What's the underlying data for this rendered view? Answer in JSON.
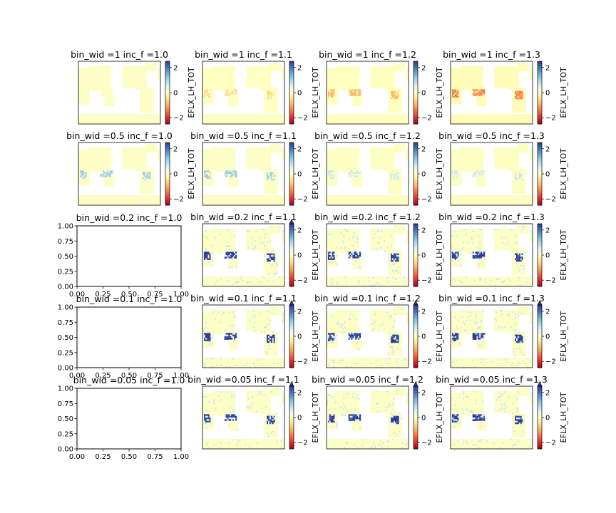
{
  "chart_data": {
    "type": "heatmap",
    "description_rows": "bin_wid values by row, inc_f values by column",
    "colormap": "RdYlBu",
    "colorbar_label": "EFLX_LH_TOT",
    "colorbar_ticks": [
      "2",
      "0",
      "−2"
    ],
    "colorbar_range": [
      -2.5,
      2.5
    ],
    "empty_axis_ticks": [
      "0.00",
      "0.25",
      "0.50",
      "0.75",
      "1.00"
    ],
    "panels": [
      {
        "title": "bin_wid =1 inc_f =1.0",
        "pattern": "neutral",
        "extend": false
      },
      {
        "title": "bin_wid =1 inc_f =1.1",
        "pattern": "neg_weak",
        "extend": false
      },
      {
        "title": "bin_wid =1 inc_f =1.2",
        "pattern": "neg_mid",
        "extend": false
      },
      {
        "title": "bin_wid =1 inc_f =1.3",
        "pattern": "neg_strong",
        "extend": false
      },
      {
        "title": "bin_wid =0.5 inc_f =1.0",
        "pattern": "pos_weak",
        "extend": false
      },
      {
        "title": "bin_wid =0.5 inc_f =1.1",
        "pattern": "pos_weak",
        "extend": false
      },
      {
        "title": "bin_wid =0.5 inc_f =1.2",
        "pattern": "pos_faint",
        "extend": false
      },
      {
        "title": "bin_wid =0.5 inc_f =1.3",
        "pattern": "pos_faint",
        "extend": false
      },
      {
        "title": "bin_wid =0.2 inc_f =1.0",
        "pattern": "empty",
        "extend": false
      },
      {
        "title": "bin_wid =0.2 inc_f =1.1",
        "pattern": "pos_strong",
        "extend": true
      },
      {
        "title": "bin_wid =0.2 inc_f =1.2",
        "pattern": "pos_strong",
        "extend": false
      },
      {
        "title": "bin_wid =0.2 inc_f =1.3",
        "pattern": "pos_strong",
        "extend": false
      },
      {
        "title": "bin_wid =0.1 inc_f =1.0",
        "pattern": "empty",
        "extend": false
      },
      {
        "title": "bin_wid =0.1 inc_f =1.1",
        "pattern": "pos_strong",
        "extend": true
      },
      {
        "title": "bin_wid =0.1 inc_f =1.2",
        "pattern": "pos_strong",
        "extend": true
      },
      {
        "title": "bin_wid =0.1 inc_f =1.3",
        "pattern": "pos_strong",
        "extend": true
      },
      {
        "title": "bin_wid =0.05 inc_f =1.0",
        "pattern": "empty",
        "extend": false
      },
      {
        "title": "bin_wid =0.05 inc_f =1.1",
        "pattern": "pos_strong",
        "extend": true
      },
      {
        "title": "bin_wid =0.05 inc_f =1.2",
        "pattern": "pos_strong",
        "extend": true
      },
      {
        "title": "bin_wid =0.05 inc_f =1.3",
        "pattern": "pos_strong",
        "extend": true
      }
    ]
  },
  "colors": {
    "land_base": "#fdfcc6",
    "ocean": "#ffffff",
    "axes": "#000000"
  }
}
